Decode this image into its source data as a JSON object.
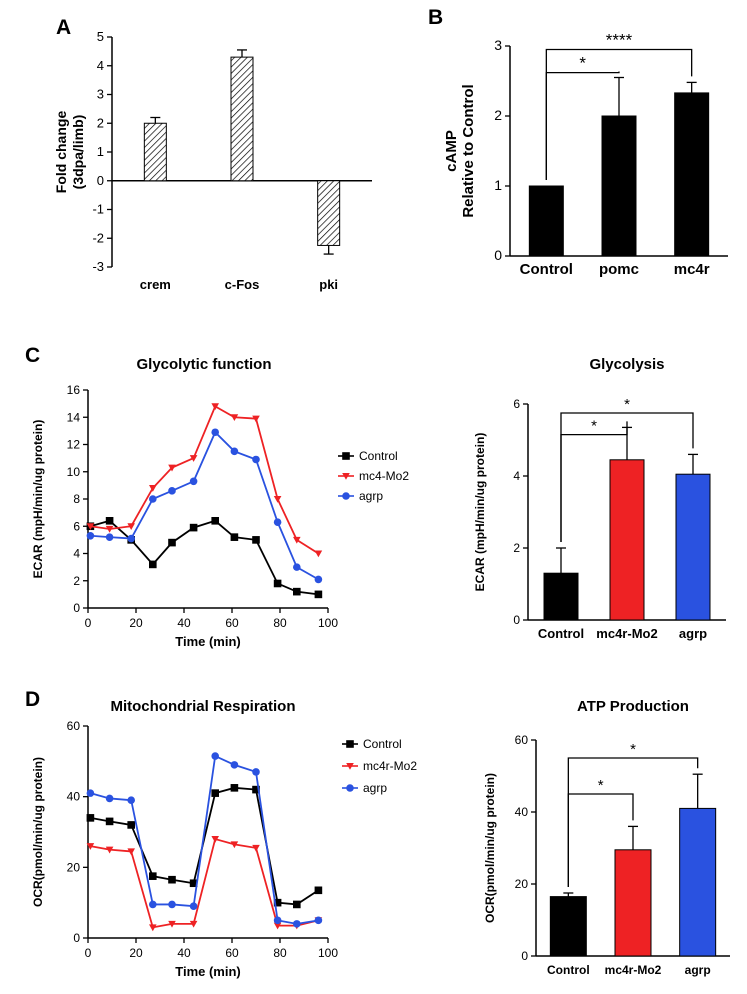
{
  "figure": {
    "panel_labels": {
      "A": "A",
      "B": "B",
      "C": "C",
      "D": "D"
    },
    "colors": {
      "black": "#000000",
      "red": "#ee2224",
      "blue": "#2a52e0"
    }
  },
  "chart_data": [
    {
      "id": "A",
      "type": "bar",
      "title": "",
      "categories": [
        "crem",
        "c-Fos",
        "pki"
      ],
      "values": [
        2.0,
        4.3,
        -2.25
      ],
      "errors": [
        0.2,
        0.25,
        0.3
      ],
      "ylabel": [
        "Fold change",
        "(3dpa/limb)"
      ],
      "ylim": [
        -3,
        5
      ],
      "yticks": [
        -3,
        -2,
        -1,
        0,
        1,
        2,
        3,
        4,
        5
      ],
      "bar_fill": "hatched"
    },
    {
      "id": "B",
      "type": "bar",
      "title": "",
      "categories": [
        "Control",
        "pomc",
        "mc4r"
      ],
      "values": [
        1.0,
        2.0,
        2.33
      ],
      "errors": [
        0,
        0.55,
        0.15
      ],
      "ylabel": [
        "cAMP",
        "Relative to Control"
      ],
      "ylim": [
        0,
        3
      ],
      "yticks": [
        0,
        1,
        2,
        3
      ],
      "bar_fill": "solid",
      "bar_colors": [
        "#000000",
        "#000000",
        "#000000"
      ],
      "significance": [
        {
          "from": 0,
          "to": 1,
          "y": 2.62,
          "label": "*"
        },
        {
          "from": 0,
          "to": 2,
          "y": 2.95,
          "label": "****"
        }
      ]
    },
    {
      "id": "C-line",
      "type": "line",
      "title": "Glycolytic function",
      "xlabel": "Time  (min)",
      "ylabel": "ECAR (mpH/min/ug protein)",
      "xlim": [
        0,
        100
      ],
      "xticks": [
        0,
        20,
        40,
        60,
        80,
        100
      ],
      "ylim": [
        0,
        16
      ],
      "yticks": [
        0,
        2,
        4,
        6,
        8,
        10,
        12,
        14,
        16
      ],
      "x": [
        1,
        9,
        18,
        27,
        35,
        44,
        53,
        61,
        70,
        79,
        87,
        96
      ],
      "series": [
        {
          "name": "Control",
          "color": "#000000",
          "marker": "square",
          "values": [
            6.0,
            6.4,
            5.0,
            3.2,
            4.8,
            5.9,
            6.4,
            5.2,
            5.0,
            1.8,
            1.2,
            1.0
          ]
        },
        {
          "name": "mc4-Mo2",
          "color": "#ee2224",
          "marker": "triangle-down",
          "values": [
            6.0,
            5.8,
            6.0,
            8.8,
            10.3,
            11.0,
            14.8,
            14.0,
            13.9,
            8.0,
            5.0,
            4.0
          ]
        },
        {
          "name": "agrp",
          "color": "#2a52e0",
          "marker": "circle",
          "values": [
            5.3,
            5.2,
            5.1,
            8.0,
            8.6,
            9.3,
            12.9,
            11.5,
            10.9,
            6.3,
            3.0,
            2.1
          ]
        }
      ]
    },
    {
      "id": "C-bar",
      "type": "bar",
      "title": "Glycolysis",
      "categories": [
        "Control",
        "mc4r-Mo2",
        "agrp"
      ],
      "values": [
        1.3,
        4.45,
        4.05
      ],
      "errors": [
        0.7,
        0.9,
        0.55
      ],
      "ylabel": [
        "ECAR (mpH/min/ug protein)"
      ],
      "ylim": [
        0,
        6
      ],
      "yticks": [
        0,
        2,
        4,
        6
      ],
      "bar_fill": "solid",
      "bar_colors": [
        "#000000",
        "#ee2224",
        "#2a52e0"
      ],
      "significance": [
        {
          "from": 0,
          "to": 1,
          "y": 5.15,
          "label": "*"
        },
        {
          "from": 0,
          "to": 2,
          "y": 5.75,
          "label": "*"
        }
      ]
    },
    {
      "id": "D-line",
      "type": "line",
      "title": "Mitochondrial Respiration",
      "xlabel": "Time (min)",
      "ylabel": "OCR(pmol/min/ug protein)",
      "xlim": [
        0,
        100
      ],
      "xticks": [
        0,
        20,
        40,
        60,
        80,
        100
      ],
      "ylim": [
        0,
        60
      ],
      "yticks": [
        0,
        20,
        40,
        60
      ],
      "x": [
        1,
        9,
        18,
        27,
        35,
        44,
        53,
        61,
        70,
        79,
        87,
        96
      ],
      "series": [
        {
          "name": "Control",
          "color": "#000000",
          "marker": "square",
          "values": [
            34,
            33,
            32,
            17.5,
            16.5,
            15.5,
            41,
            42.5,
            42,
            10,
            9.5,
            13.5
          ]
        },
        {
          "name": "mc4r-Mo2",
          "color": "#ee2224",
          "marker": "triangle-down",
          "values": [
            26,
            25,
            24.5,
            3,
            4,
            4,
            28,
            26.5,
            25.5,
            3.5,
            3.5,
            5
          ]
        },
        {
          "name": "agrp",
          "color": "#2a52e0",
          "marker": "circle",
          "values": [
            41,
            39.5,
            39,
            9.5,
            9.5,
            9,
            51.5,
            49,
            47,
            5,
            4,
            5
          ]
        }
      ]
    },
    {
      "id": "D-bar",
      "type": "bar",
      "title": "ATP Production",
      "categories": [
        "Control",
        "mc4r-Mo2",
        "agrp"
      ],
      "values": [
        16.5,
        29.5,
        41
      ],
      "errors": [
        1,
        6.5,
        9.5
      ],
      "ylabel": [
        "OCR(pmol/min/ug protein)"
      ],
      "ylim": [
        0,
        60
      ],
      "yticks": [
        0,
        20,
        40,
        60
      ],
      "bar_fill": "solid",
      "bar_colors": [
        "#000000",
        "#ee2224",
        "#2a52e0"
      ],
      "significance": [
        {
          "from": 0,
          "to": 1,
          "y": 45,
          "label": "*"
        },
        {
          "from": 0,
          "to": 2,
          "y": 55,
          "label": "*"
        }
      ]
    }
  ]
}
